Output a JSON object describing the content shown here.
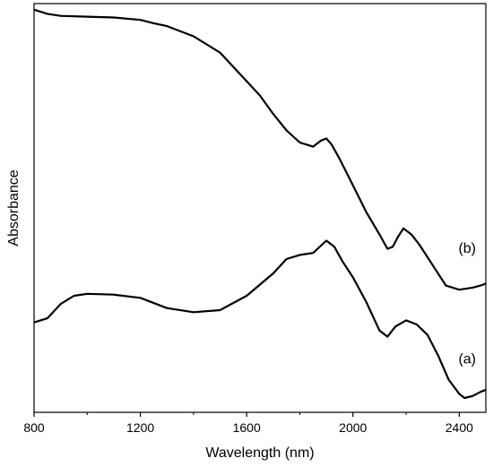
{
  "chart_data": {
    "type": "line",
    "title": "",
    "xlabel": "Wavelength (nm)",
    "ylabel": "Absorbance",
    "xlim": [
      800,
      2500
    ],
    "ylim": [
      0,
      1
    ],
    "xticks": [
      800,
      1200,
      1600,
      2000,
      2400
    ],
    "xtick_labels": [
      "800",
      "1200",
      "1600",
      "2000",
      "2400"
    ],
    "grid": false,
    "series": [
      {
        "name": "(b)",
        "color": "#000000",
        "points": [
          [
            800,
            0.985
          ],
          [
            850,
            0.975
          ],
          [
            900,
            0.97
          ],
          [
            1000,
            0.968
          ],
          [
            1100,
            0.966
          ],
          [
            1200,
            0.96
          ],
          [
            1250,
            0.952
          ],
          [
            1300,
            0.945
          ],
          [
            1400,
            0.92
          ],
          [
            1500,
            0.88
          ],
          [
            1600,
            0.81
          ],
          [
            1650,
            0.775
          ],
          [
            1700,
            0.73
          ],
          [
            1750,
            0.69
          ],
          [
            1800,
            0.66
          ],
          [
            1850,
            0.65
          ],
          [
            1880,
            0.665
          ],
          [
            1900,
            0.67
          ],
          [
            1920,
            0.655
          ],
          [
            1950,
            0.62
          ],
          [
            2000,
            0.555
          ],
          [
            2050,
            0.49
          ],
          [
            2100,
            0.435
          ],
          [
            2130,
            0.4
          ],
          [
            2150,
            0.405
          ],
          [
            2170,
            0.43
          ],
          [
            2190,
            0.45
          ],
          [
            2220,
            0.435
          ],
          [
            2250,
            0.41
          ],
          [
            2300,
            0.36
          ],
          [
            2350,
            0.31
          ],
          [
            2400,
            0.3
          ],
          [
            2450,
            0.305
          ],
          [
            2480,
            0.31
          ],
          [
            2500,
            0.315
          ]
        ]
      },
      {
        "name": "(a)",
        "color": "#000000",
        "points": [
          [
            800,
            0.22
          ],
          [
            850,
            0.23
          ],
          [
            900,
            0.265
          ],
          [
            950,
            0.285
          ],
          [
            1000,
            0.29
          ],
          [
            1100,
            0.288
          ],
          [
            1200,
            0.28
          ],
          [
            1300,
            0.255
          ],
          [
            1400,
            0.245
          ],
          [
            1500,
            0.25
          ],
          [
            1600,
            0.285
          ],
          [
            1700,
            0.34
          ],
          [
            1750,
            0.375
          ],
          [
            1800,
            0.385
          ],
          [
            1850,
            0.39
          ],
          [
            1900,
            0.42
          ],
          [
            1930,
            0.405
          ],
          [
            1960,
            0.37
          ],
          [
            2000,
            0.33
          ],
          [
            2050,
            0.27
          ],
          [
            2100,
            0.2
          ],
          [
            2130,
            0.185
          ],
          [
            2160,
            0.21
          ],
          [
            2200,
            0.225
          ],
          [
            2240,
            0.215
          ],
          [
            2280,
            0.19
          ],
          [
            2320,
            0.14
          ],
          [
            2360,
            0.08
          ],
          [
            2400,
            0.045
          ],
          [
            2420,
            0.035
          ],
          [
            2450,
            0.04
          ],
          [
            2480,
            0.05
          ],
          [
            2500,
            0.055
          ]
        ]
      }
    ]
  }
}
